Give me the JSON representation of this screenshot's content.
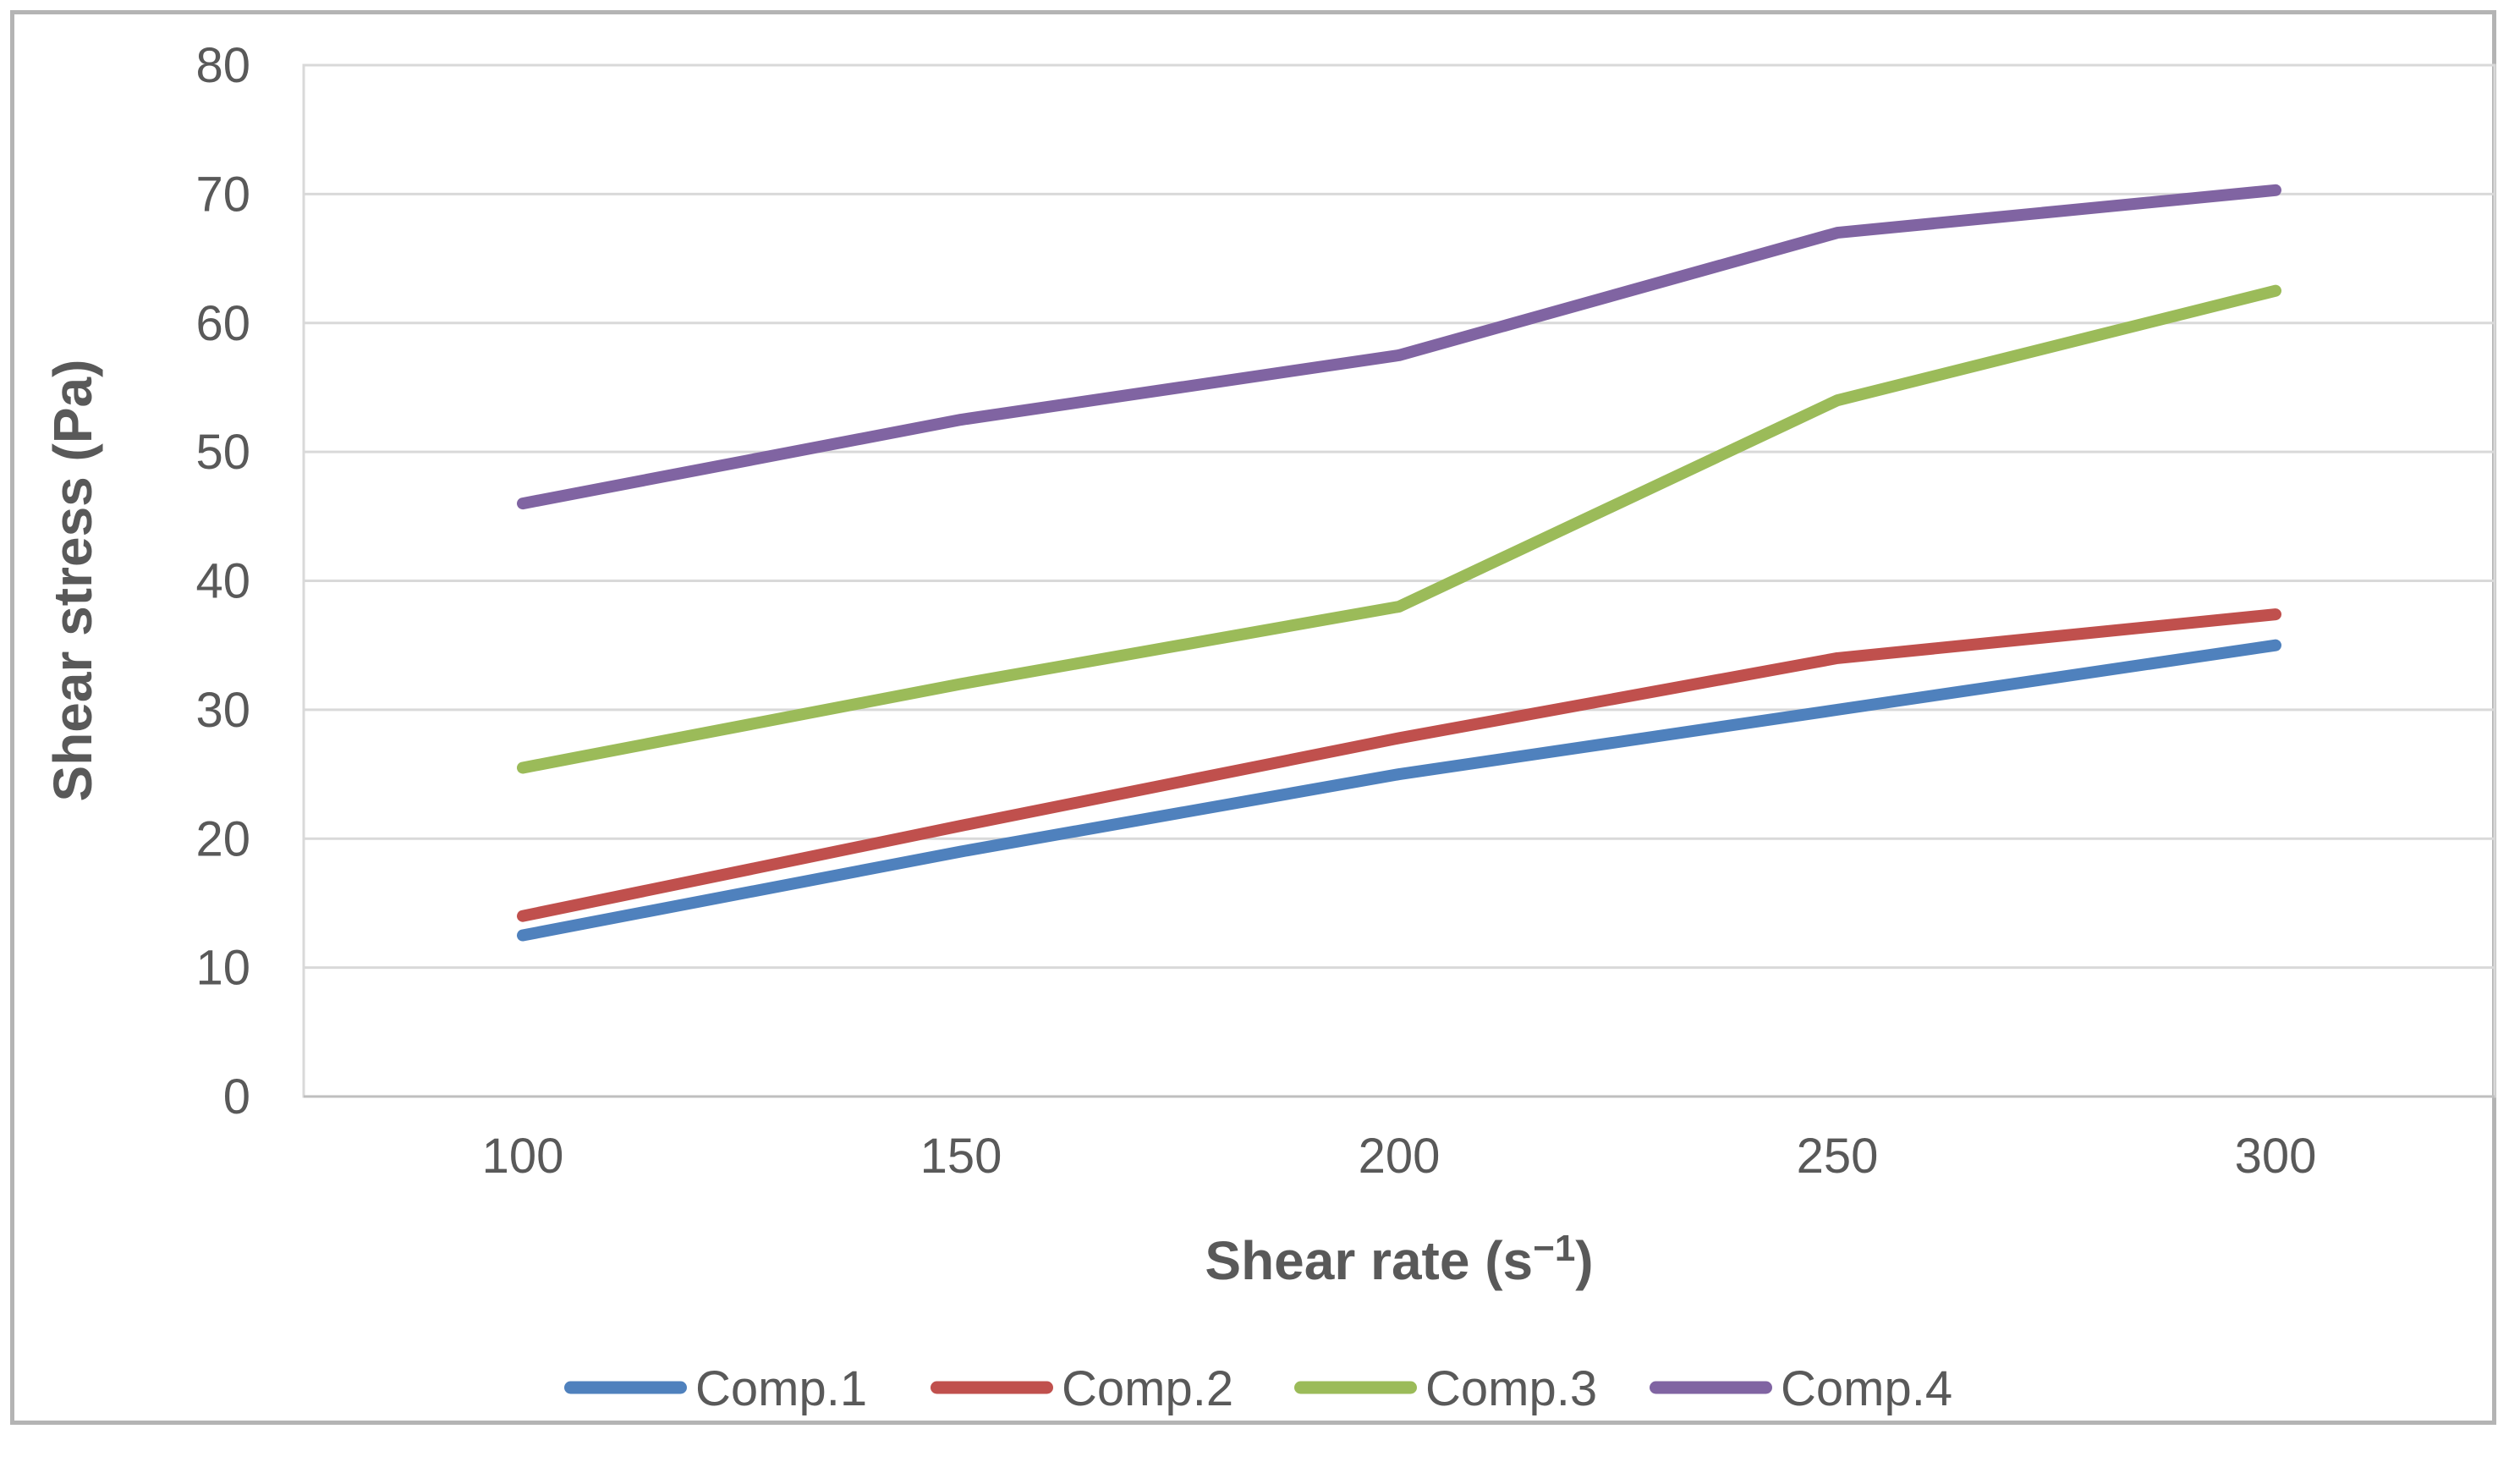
{
  "figure": {
    "background": "#ffffff",
    "border_color": "#b4b4b4"
  },
  "chart_data": {
    "type": "line",
    "ylabel": "Shear stress (Pa)",
    "xlabel": {
      "main": "Shear rate (s",
      "sup": "−1",
      "end": ")"
    },
    "xlabel_plain": "Shear rate (s⁻¹)",
    "x_values": [
      100,
      150,
      200,
      250,
      300
    ],
    "x_tick_labels": [
      "100",
      "150",
      "200",
      "250",
      "300"
    ],
    "y_ticks": [
      0,
      10,
      20,
      30,
      40,
      50,
      60,
      70,
      80
    ],
    "ylim": [
      0,
      80
    ],
    "grid": "horizontal",
    "legend_position": "bottom",
    "series": [
      {
        "name": "Comp.1",
        "color": "#4F81BD",
        "values": [
          12.5,
          19,
          25,
          30,
          35
        ]
      },
      {
        "name": "Comp.2",
        "color": "#C0504D",
        "values": [
          14,
          21,
          27.8,
          34,
          37.4
        ]
      },
      {
        "name": "Comp.3",
        "color": "#9BBB59",
        "values": [
          25.5,
          32,
          38,
          54,
          62.5
        ]
      },
      {
        "name": "Comp.4",
        "color": "#8064A2",
        "values": [
          46,
          52.5,
          57.5,
          67,
          70.3
        ]
      }
    ],
    "colors": {
      "axis_text": "#595959",
      "gridline": "#D9D9D9",
      "axis_line": "#BFBFBF"
    }
  }
}
